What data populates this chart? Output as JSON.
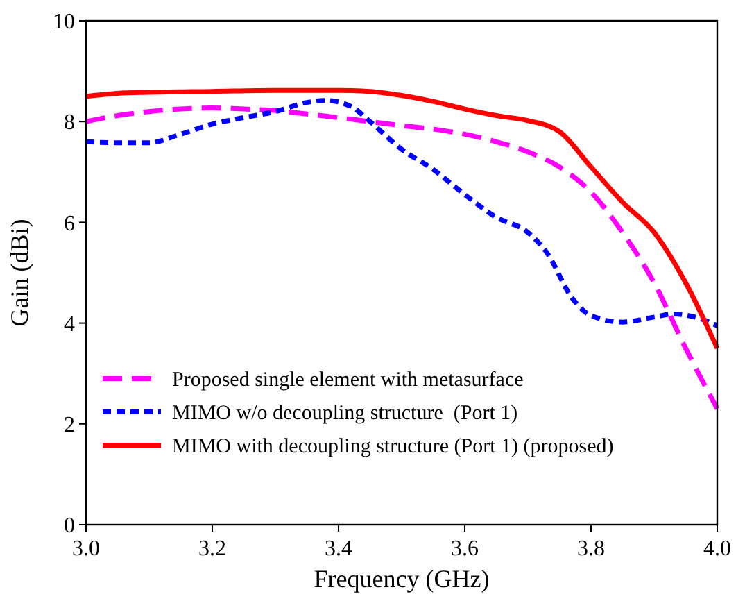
{
  "chart_data": {
    "type": "line",
    "xlabel": "Frequency (GHz)",
    "ylabel": "Gain (dBi)",
    "xlim": [
      3.0,
      4.0
    ],
    "ylim": [
      0,
      10
    ],
    "xticks": [
      {
        "value": 3.0,
        "label": "3.0"
      },
      {
        "value": 3.2,
        "label": "3.2"
      },
      {
        "value": 3.4,
        "label": "3.4"
      },
      {
        "value": 3.6,
        "label": "3.6"
      },
      {
        "value": 3.8,
        "label": "3.8"
      },
      {
        "value": 4.0,
        "label": "4.0"
      }
    ],
    "yticks": [
      0,
      2,
      4,
      6,
      8,
      10
    ],
    "grid": false,
    "legend": "bottom left",
    "series": [
      {
        "name": "Proposed single element with metasurface",
        "color": "#ff00ff",
        "line_style": "dashed",
        "x": [
          3.0,
          3.05,
          3.1,
          3.15,
          3.2,
          3.25,
          3.3,
          3.35,
          3.4,
          3.45,
          3.5,
          3.55,
          3.6,
          3.65,
          3.7,
          3.75,
          3.8,
          3.85,
          3.9,
          3.95,
          4.0
        ],
        "values": [
          8.0,
          8.12,
          8.2,
          8.25,
          8.27,
          8.25,
          8.22,
          8.15,
          8.08,
          8.0,
          7.92,
          7.85,
          7.75,
          7.6,
          7.4,
          7.1,
          6.6,
          5.8,
          4.8,
          3.5,
          2.3
        ]
      },
      {
        "name": "MIMO w/o decoupling structure  (Port 1)",
        "color": "#0000ff",
        "line_style": "dotted",
        "x": [
          3.0,
          3.05,
          3.1,
          3.15,
          3.2,
          3.25,
          3.3,
          3.35,
          3.38,
          3.42,
          3.45,
          3.5,
          3.55,
          3.6,
          3.65,
          3.7,
          3.73,
          3.77,
          3.8,
          3.85,
          3.9,
          3.93,
          3.97,
          4.0
        ],
        "values": [
          7.6,
          7.58,
          7.58,
          7.75,
          7.95,
          8.08,
          8.2,
          8.38,
          8.42,
          8.3,
          8.0,
          7.45,
          7.05,
          6.55,
          6.1,
          5.8,
          5.4,
          4.5,
          4.15,
          4.02,
          4.12,
          4.18,
          4.1,
          3.95
        ]
      },
      {
        "name": "MIMO with decoupling structure (Port 1) (proposed)",
        "color": "#ff0000",
        "line_style": "solid",
        "x": [
          3.0,
          3.05,
          3.1,
          3.2,
          3.3,
          3.4,
          3.45,
          3.5,
          3.55,
          3.6,
          3.65,
          3.7,
          3.75,
          3.8,
          3.85,
          3.9,
          3.95,
          4.0
        ],
        "values": [
          8.5,
          8.56,
          8.58,
          8.6,
          8.62,
          8.62,
          8.6,
          8.52,
          8.4,
          8.25,
          8.12,
          8.02,
          7.8,
          7.1,
          6.4,
          5.8,
          4.8,
          3.5
        ]
      }
    ]
  }
}
